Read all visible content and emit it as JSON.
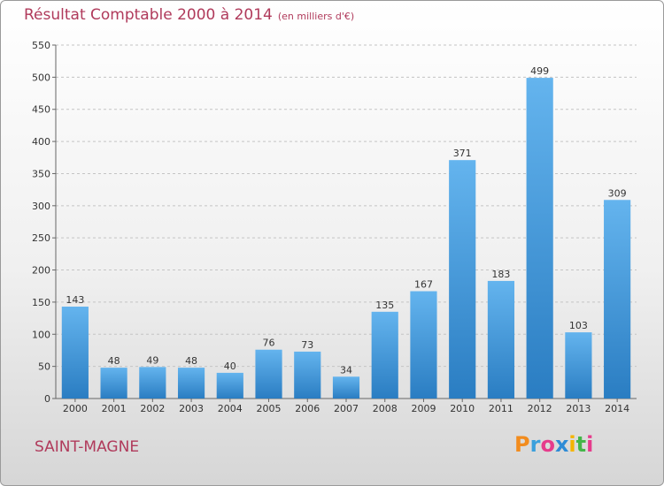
{
  "header": {
    "title": "Résultat Comptable 2000 à 2014",
    "unit": "(en milliers d'€)"
  },
  "footer": {
    "commune": "SAINT-MAGNE",
    "logo_letters": [
      "P",
      "r",
      "o",
      "x",
      "i",
      "t",
      "i"
    ],
    "logo_colors": [
      "#f28c1e",
      "#3aa0dc",
      "#e63c8c",
      "#2e8bd6",
      "#f5b400",
      "#44b649",
      "#e63c8c"
    ]
  },
  "colors": {
    "bar_light": "#64b4ee",
    "bar_dark": "#2a7dc2",
    "text_accent": "#b03a5b"
  },
  "chart_data": {
    "type": "bar",
    "categories": [
      "2000",
      "2001",
      "2002",
      "2003",
      "2004",
      "2005",
      "2006",
      "2007",
      "2008",
      "2009",
      "2010",
      "2011",
      "2012",
      "2013",
      "2014"
    ],
    "values": [
      143,
      48,
      49,
      48,
      40,
      76,
      73,
      34,
      135,
      167,
      371,
      183,
      499,
      103,
      309
    ],
    "data_labels": [
      "143",
      "48",
      "49",
      "48",
      "40",
      "76",
      "73",
      "34",
      "135",
      "167",
      "371",
      "183",
      "499",
      "103",
      "309"
    ],
    "y_ticks": [
      "0",
      "50",
      "100",
      "150",
      "200",
      "250",
      "300",
      "350",
      "400",
      "450",
      "500",
      "550"
    ],
    "ylim": [
      0,
      550
    ],
    "grid": true,
    "xlabel": "",
    "ylabel": ""
  }
}
